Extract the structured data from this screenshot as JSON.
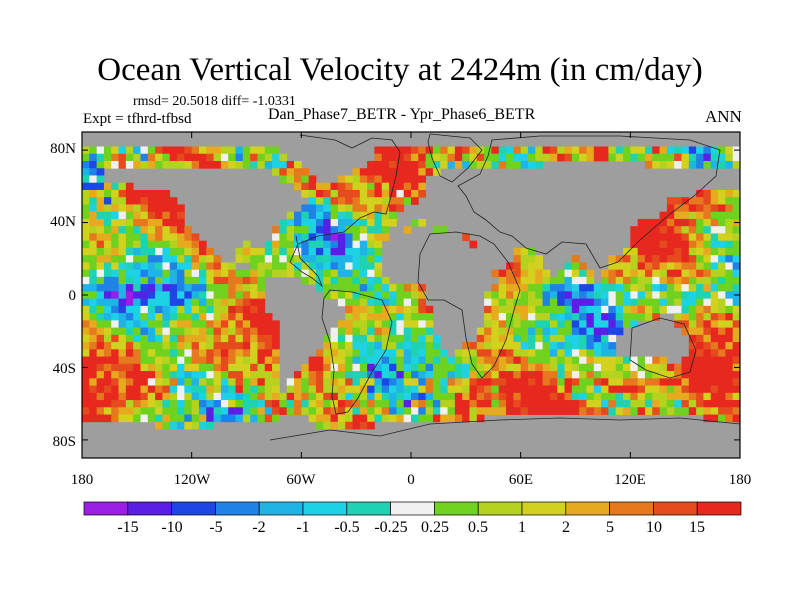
{
  "title": "Ocean Vertical Velocity at 2424m (in cm/day)",
  "stats": "rmsd= 20.5018  diff= -1.0331",
  "expt": "Expt = tfhrd-tfbsd",
  "subtitle": "Dan_Phase7_BETR - Ypr_Phase6_BETR",
  "season": "ANN",
  "chart_data": {
    "type": "heatmap",
    "title": "Ocean Vertical Velocity at 2424m (in cm/day)",
    "units": "cm/day",
    "x_axis": {
      "range": [
        -180,
        180
      ],
      "ticks": [
        -180,
        -120,
        -60,
        0,
        60,
        120,
        180
      ],
      "tick_labels": [
        "180",
        "120W",
        "60W",
        "0",
        "60E",
        "120E",
        "180"
      ]
    },
    "y_axis": {
      "range": [
        -90,
        90
      ],
      "ticks": [
        80,
        40,
        0,
        -40,
        -80
      ],
      "tick_labels": [
        "80N",
        "40N",
        "0",
        "40S",
        "80S"
      ]
    },
    "colorbar": {
      "labels": [
        "-15",
        "-10",
        "-5",
        "-2",
        "-1",
        "-0.5",
        "-0.25",
        "0.25",
        "0.5",
        "1",
        "2",
        "5",
        "10",
        "15"
      ],
      "colors": [
        "#9a1ee6",
        "#5a1ee6",
        "#1e46e6",
        "#1e82e6",
        "#1eb4e6",
        "#1ed2e6",
        "#1ed2b4",
        "#f0f0f0",
        "#6ed21e",
        "#b4d21e",
        "#d2d21e",
        "#e6aa1e",
        "#e6781e",
        "#e64b1e",
        "#e6281e"
      ]
    },
    "land_color": "#9e9e9e",
    "missing_color": "#ffffff"
  }
}
